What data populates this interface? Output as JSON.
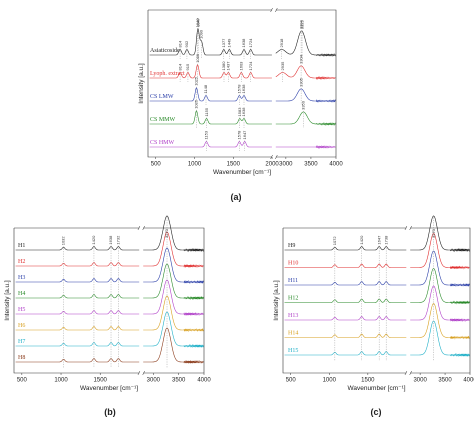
{
  "panel_labels": [
    "(a)",
    "(b)",
    "(c)"
  ],
  "chart_data": [
    {
      "type": "line",
      "ylabel": "Intensity [a.u.]",
      "xlabel": "Wavenumber [cm⁻¹]",
      "xticks": [
        "500",
        "1000",
        "1500",
        "2000",
        "3000",
        "3500",
        "4000"
      ],
      "axis_break": [
        2000,
        2800
      ],
      "xlim": [
        400,
        4000
      ],
      "series": [
        {
          "name": "Asiaticoside",
          "color": "#222222",
          "peaks": [
            {
              "x": 814,
              "label": "814"
            },
            {
              "x": 902,
              "label": "902"
            },
            {
              "x": 1047,
              "label": "1047"
            },
            {
              "x": 1090,
              "label": "1090"
            },
            {
              "x": 1040,
              "label": "1040"
            },
            {
              "x": 1377,
              "label": "1377"
            },
            {
              "x": 1449,
              "label": "1449"
            },
            {
              "x": 1638,
              "label": "1638"
            },
            {
              "x": 1724,
              "label": "1724"
            },
            {
              "x": 2918,
              "label": "2918"
            },
            {
              "x": 3304,
              "label": "3304"
            },
            {
              "x": 3323,
              "label": "3323"
            }
          ]
        },
        {
          "name": "Lyoph. extract",
          "color": "#e03030",
          "peaks": [
            {
              "x": 814,
              "label": "814"
            },
            {
              "x": 915,
              "label": "915"
            },
            {
              "x": 1039,
              "label": "1039"
            },
            {
              "x": 1380,
              "label": "1380"
            },
            {
              "x": 1437,
              "label": "1437"
            },
            {
              "x": 1603,
              "label": "1603"
            },
            {
              "x": 1724,
              "label": "1724"
            },
            {
              "x": 2935,
              "label": "2935"
            },
            {
              "x": 3304,
              "label": "3304"
            }
          ]
        },
        {
          "name": "CS LMW",
          "color": "#2a3ea8",
          "peaks": [
            {
              "x": 1025,
              "label": "1025"
            },
            {
              "x": 1148,
              "label": "1148"
            },
            {
              "x": 1578,
              "label": "1578"
            },
            {
              "x": 1638,
              "label": "1638"
            },
            {
              "x": 3305,
              "label": "3305"
            }
          ]
        },
        {
          "name": "CS MMW",
          "color": "#2a8a2a",
          "peaks": [
            {
              "x": 1025,
              "label": "1025"
            },
            {
              "x": 1155,
              "label": "1155"
            },
            {
              "x": 1583,
              "label": "1583"
            },
            {
              "x": 1638,
              "label": "1638"
            },
            {
              "x": 3350,
              "label": "3350"
            }
          ]
        },
        {
          "name": "CS HMW",
          "color": "#b040c8",
          "peaks": [
            {
              "x": 1153,
              "label": "1153"
            },
            {
              "x": 1578,
              "label": "1578"
            },
            {
              "x": 1647,
              "label": "1647"
            }
          ]
        }
      ]
    },
    {
      "type": "line",
      "ylabel": "Intensity [a.u.]",
      "xlabel": "Wavenumber [cm⁻¹]",
      "xticks": [
        "500",
        "1000",
        "1500",
        "3000",
        "3500",
        "4000"
      ],
      "axis_break": [
        2000,
        2800
      ],
      "xlim": [
        400,
        4000
      ],
      "peaks": [
        {
          "x": 1032,
          "label": "1032"
        },
        {
          "x": 1420,
          "label": "1420"
        },
        {
          "x": 1638,
          "label": "1638"
        },
        {
          "x": 1732,
          "label": "1732"
        },
        {
          "x": 3270,
          "label": "3270"
        }
      ],
      "series": [
        {
          "name": "H1",
          "color": "#222222"
        },
        {
          "name": "H2",
          "color": "#e03030"
        },
        {
          "name": "H3",
          "color": "#2a3ea8"
        },
        {
          "name": "H4",
          "color": "#2a8a2a"
        },
        {
          "name": "H5",
          "color": "#b040c8"
        },
        {
          "name": "H6",
          "color": "#d8a020"
        },
        {
          "name": "H7",
          "color": "#20b0c8"
        },
        {
          "name": "H8",
          "color": "#8a3a1a"
        }
      ]
    },
    {
      "type": "line",
      "ylabel": "Intensity [a.u.]",
      "xlabel": "Wavenumber [cm⁻¹]",
      "xticks": [
        "500",
        "1000",
        "1500",
        "3000",
        "3500",
        "4000"
      ],
      "axis_break": [
        2000,
        2800
      ],
      "xlim": [
        400,
        4000
      ],
      "peaks": [
        {
          "x": 1072,
          "label": "1072"
        },
        {
          "x": 1420,
          "label": "1420"
        },
        {
          "x": 1647,
          "label": "1647"
        },
        {
          "x": 1738,
          "label": "1738"
        },
        {
          "x": 3270,
          "label": "3270"
        }
      ],
      "series": [
        {
          "name": "H9",
          "color": "#222222"
        },
        {
          "name": "H10",
          "color": "#e03030"
        },
        {
          "name": "H11",
          "color": "#2a3ea8"
        },
        {
          "name": "H12",
          "color": "#2a8a2a"
        },
        {
          "name": "H13",
          "color": "#b040c8"
        },
        {
          "name": "H14",
          "color": "#d8a020"
        },
        {
          "name": "H15",
          "color": "#20b0c8"
        }
      ]
    }
  ]
}
